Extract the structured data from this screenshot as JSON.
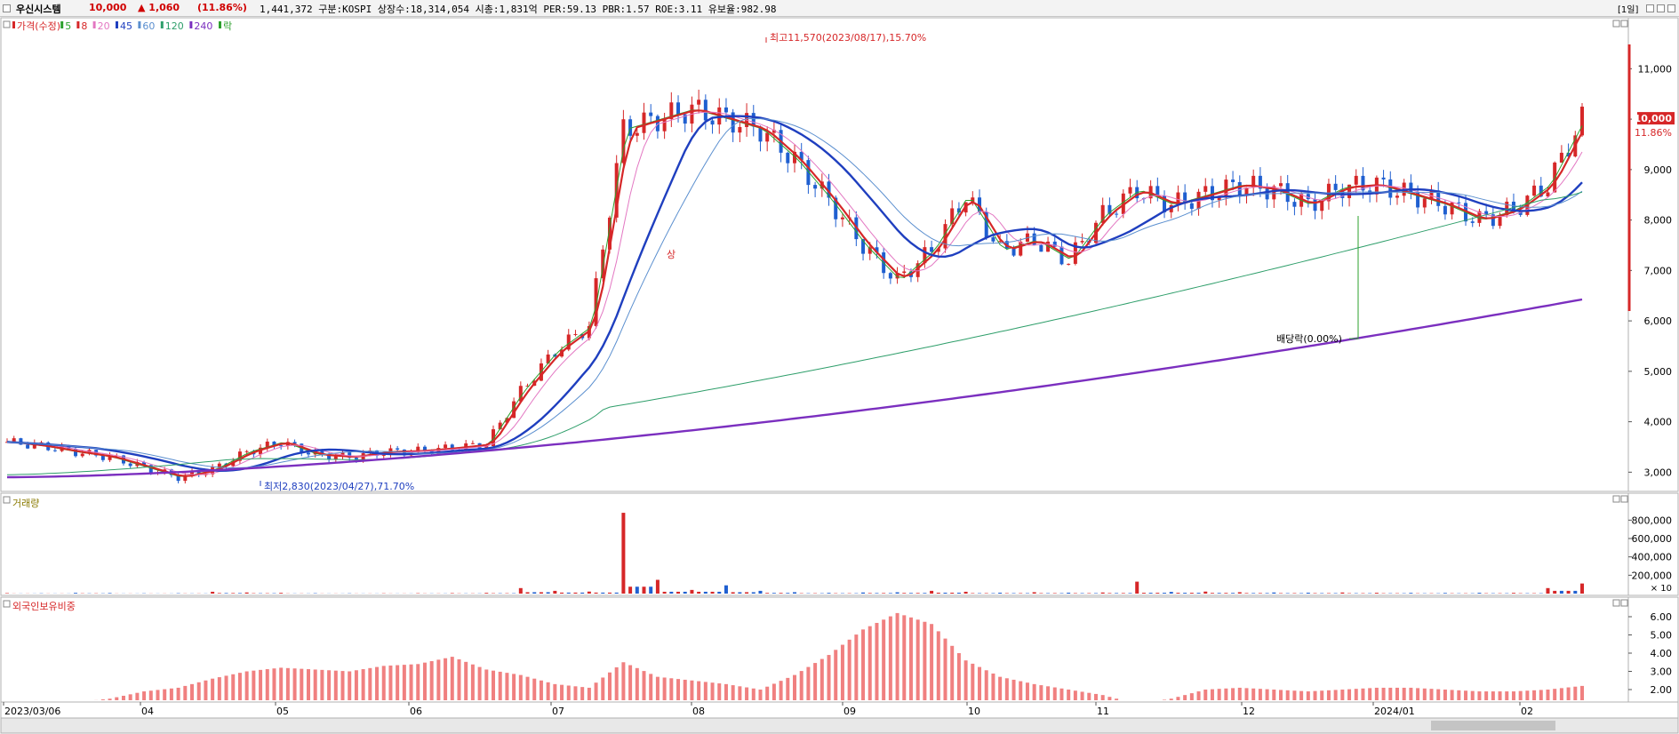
{
  "header": {
    "stock_name": "우신시스템",
    "price": "10,000",
    "change": "▲ 1,060",
    "change_pct": "(11.86%)",
    "info": "1,441,372  구분:KOSPI 상장수:18,314,054 시총:1,831억 PER:59.13 PBR:1.57 ROE:3.11 유보율:982.98",
    "period_btn": "[1일]"
  },
  "price_panel": {
    "legend": [
      {
        "label": "가격(수정)",
        "color": "#d62728"
      },
      {
        "label": "5",
        "color": "#2ca02c"
      },
      {
        "label": "8",
        "color": "#d62728"
      },
      {
        "label": "20",
        "color": "#e377c2"
      },
      {
        "label": "45",
        "color": "#1f3fbf"
      },
      {
        "label": "60",
        "color": "#5b8fcf"
      },
      {
        "label": "120",
        "color": "#2e9e6a"
      },
      {
        "label": "240",
        "color": "#7b2fbf"
      },
      {
        "label": "락",
        "color": "#2ca02c"
      }
    ],
    "y_ticks": [
      "11,000",
      "10,000",
      "9,000",
      "8,000",
      "7,000",
      "6,000",
      "5,000",
      "4,000",
      "3,000"
    ],
    "last_price_label": "10,000",
    "last_pct_label": "11.86%",
    "annotation_high": "최고11,570(2023/08/17),15.70%",
    "annotation_low": "최저2,830(2023/04/27),71.70%",
    "annotation_dividend": "배당락(0.00%)",
    "annotation_limit": "상"
  },
  "volume_panel": {
    "legend": "거래량",
    "y_ticks": [
      "800,000",
      "600,000",
      "400,000",
      "200,000"
    ],
    "unit": "× 10"
  },
  "foreign_panel": {
    "legend": "외국인보유비중",
    "y_ticks": [
      "6.00",
      "5.00",
      "4.00",
      "3.00",
      "2.00"
    ]
  },
  "x_axis": {
    "labels": [
      "2023/03/06",
      "04",
      "05",
      "06",
      "07",
      "08",
      "09",
      "10",
      "11",
      "12",
      "2024/01",
      "02"
    ]
  },
  "chart_data": {
    "type": "candlestick",
    "title": "우신시스템",
    "x_labels": [
      "2023/03/06",
      "04",
      "05",
      "06",
      "07",
      "08",
      "09",
      "10",
      "11",
      "12",
      "2024/01",
      "02"
    ],
    "ylim": [
      2600,
      12000
    ],
    "high": {
      "value": 11570,
      "date": "2023/08/17"
    },
    "low": {
      "value": 2830,
      "date": "2023/04/27"
    },
    "last_close": 10000,
    "close_series": [
      3600,
      3520,
      3400,
      3300,
      3100,
      2900,
      3050,
      3400,
      3600,
      3350,
      3300,
      3400,
      3420,
      3480,
      3550,
      4600,
      5400,
      5900,
      9800,
      10000,
      10200,
      10000,
      9800,
      9200,
      8400,
      7500,
      6800,
      7400,
      8500,
      7400,
      7600,
      7200,
      8100,
      8600,
      8300,
      8500,
      8700,
      8600,
      8300,
      8650,
      8700,
      8500,
      8300,
      8000,
      8200,
      8700,
      10000
    ],
    "volume": [
      5000,
      3000,
      8000,
      6000,
      3000,
      4000,
      20000,
      12000,
      8000,
      4000,
      3000,
      3000,
      4000,
      5000,
      8000,
      60000,
      30000,
      22000,
      880000,
      150000,
      40000,
      90000,
      30000,
      15000,
      8000,
      12000,
      14000,
      30000,
      20000,
      10000,
      15000,
      10000,
      12000,
      130000,
      18000,
      22000,
      15000,
      12000,
      10000,
      12000,
      9000,
      8000,
      7000,
      9000,
      8000,
      60000,
      110000
    ],
    "foreign_ratio": [
      1.0,
      1.1,
      1.3,
      1.5,
      1.9,
      2.1,
      2.6,
      3.0,
      3.2,
      3.1,
      3.0,
      3.3,
      3.4,
      3.8,
      3.1,
      2.8,
      2.3,
      2.1,
      3.5,
      2.7,
      2.5,
      2.3,
      2.0,
      2.8,
      3.9,
      5.3,
      6.2,
      5.6,
      3.6,
      2.7,
      2.3,
      2.0,
      1.7,
      1.2,
      1.5,
      2.0,
      2.1,
      2.0,
      1.9,
      2.0,
      2.1,
      2.1,
      2.0,
      1.9,
      1.9,
      2.0,
      2.2
    ],
    "ma": [
      {
        "name": "5",
        "color": "#2ca02c"
      },
      {
        "name": "8",
        "color": "#d62728"
      },
      {
        "name": "20",
        "color": "#e377c2"
      },
      {
        "name": "45",
        "color": "#1f3fbf"
      },
      {
        "name": "60",
        "color": "#5b8fcf"
      },
      {
        "name": "120",
        "color": "#2e9e6a"
      },
      {
        "name": "240",
        "color": "#7b2fbf"
      }
    ]
  }
}
